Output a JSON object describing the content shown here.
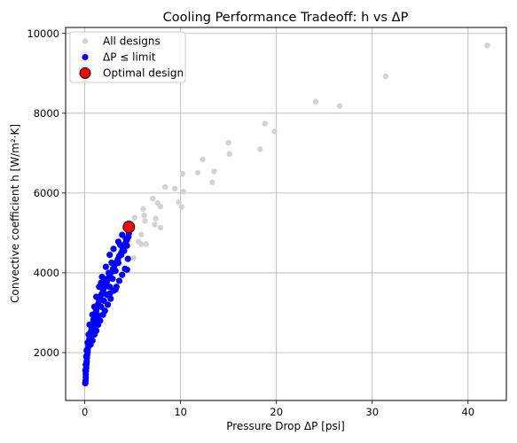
{
  "chart_data": {
    "type": "scatter",
    "title": "Cooling Performance Tradeoff: h vs ΔP",
    "xlabel": "Pressure Drop ΔP [psi]",
    "ylabel": "Convective coefficient h [W/m²·K]",
    "xlim": [
      -2,
      44
    ],
    "ylim": [
      800,
      10150
    ],
    "xticks": [
      0,
      10,
      20,
      30,
      40
    ],
    "yticks": [
      2000,
      4000,
      6000,
      8000,
      10000
    ],
    "grid": true,
    "legend": "top-left",
    "series": [
      {
        "name": "All designs",
        "color": "#d3d3d3",
        "points": [
          [
            5.2,
            5380
          ],
          [
            5.9,
            4960
          ],
          [
            6.1,
            5600
          ],
          [
            6.2,
            5440
          ],
          [
            6.3,
            5300
          ],
          [
            5.6,
            4780
          ],
          [
            5.9,
            4720
          ],
          [
            6.4,
            4720
          ],
          [
            5.1,
            4370
          ],
          [
            7.1,
            5860
          ],
          [
            7.4,
            5360
          ],
          [
            7.6,
            5750
          ],
          [
            7.3,
            5210
          ],
          [
            7.9,
            5130
          ],
          [
            7.9,
            5660
          ],
          [
            8.4,
            6150
          ],
          [
            9.4,
            6110
          ],
          [
            9.8,
            5770
          ],
          [
            10.1,
            5650
          ],
          [
            10.2,
            6480
          ],
          [
            10.3,
            6040
          ],
          [
            11.8,
            6510
          ],
          [
            12.3,
            6840
          ],
          [
            13.3,
            6270
          ],
          [
            13.5,
            6540
          ],
          [
            15.0,
            7260
          ],
          [
            15.1,
            6980
          ],
          [
            18.3,
            7100
          ],
          [
            18.8,
            7740
          ],
          [
            19.8,
            7540
          ],
          [
            24.1,
            8290
          ],
          [
            26.6,
            8180
          ],
          [
            31.4,
            8920
          ],
          [
            42.0,
            9700
          ]
        ]
      },
      {
        "name": "ΔP ≤ limit",
        "color": "#0000ff",
        "points": [
          [
            0.05,
            1230
          ],
          [
            0.08,
            1300
          ],
          [
            0.1,
            1380
          ],
          [
            0.1,
            1460
          ],
          [
            0.12,
            1540
          ],
          [
            0.15,
            1620
          ],
          [
            0.17,
            1700
          ],
          [
            0.2,
            1780
          ],
          [
            0.22,
            1860
          ],
          [
            0.25,
            1940
          ],
          [
            0.3,
            2020
          ],
          [
            0.32,
            2100
          ],
          [
            0.38,
            2180
          ],
          [
            0.42,
            2260
          ],
          [
            0.48,
            2340
          ],
          [
            0.55,
            2420
          ],
          [
            0.6,
            2500
          ],
          [
            0.7,
            2580
          ],
          [
            0.75,
            2660
          ],
          [
            0.85,
            2740
          ],
          [
            0.9,
            2820
          ],
          [
            1.0,
            2900
          ],
          [
            1.1,
            2980
          ],
          [
            1.2,
            3060
          ],
          [
            1.3,
            3140
          ],
          [
            1.4,
            3220
          ],
          [
            1.5,
            3300
          ],
          [
            1.6,
            3380
          ],
          [
            1.75,
            3460
          ],
          [
            1.9,
            3540
          ],
          [
            2.0,
            3620
          ],
          [
            2.15,
            3700
          ],
          [
            2.3,
            3780
          ],
          [
            2.45,
            3860
          ],
          [
            2.6,
            3940
          ],
          [
            2.8,
            4020
          ],
          [
            2.95,
            4100
          ],
          [
            3.1,
            4180
          ],
          [
            3.3,
            4260
          ],
          [
            3.45,
            4340
          ],
          [
            3.6,
            4420
          ],
          [
            3.8,
            4500
          ],
          [
            3.95,
            4580
          ],
          [
            4.1,
            4660
          ],
          [
            4.25,
            4740
          ],
          [
            4.4,
            4820
          ],
          [
            4.55,
            4900
          ],
          [
            4.6,
            4980
          ],
          [
            0.6,
            2200
          ],
          [
            0.8,
            2300
          ],
          [
            1.0,
            2450
          ],
          [
            1.2,
            2550
          ],
          [
            1.4,
            2700
          ],
          [
            1.6,
            2800
          ],
          [
            1.9,
            2950
          ],
          [
            2.1,
            3050
          ],
          [
            2.4,
            3200
          ],
          [
            2.7,
            3350
          ],
          [
            3.0,
            3550
          ],
          [
            3.3,
            3650
          ],
          [
            3.6,
            3800
          ],
          [
            3.9,
            3950
          ],
          [
            4.2,
            4100
          ],
          [
            4.5,
            4350
          ],
          [
            0.9,
            2650
          ],
          [
            1.1,
            2800
          ],
          [
            1.3,
            2950
          ],
          [
            1.7,
            3150
          ],
          [
            2.0,
            3300
          ],
          [
            2.3,
            3450
          ],
          [
            2.6,
            3650
          ],
          [
            2.9,
            3850
          ],
          [
            3.2,
            4050
          ],
          [
            3.5,
            4250
          ],
          [
            3.8,
            4450
          ],
          [
            4.1,
            4550
          ],
          [
            4.4,
            4680
          ],
          [
            3.0,
            4600
          ],
          [
            3.5,
            4780
          ],
          [
            3.9,
            4950
          ],
          [
            2.6,
            4450
          ],
          [
            2.2,
            4150
          ],
          [
            1.8,
            3900
          ],
          [
            1.5,
            3650
          ],
          [
            1.2,
            3400
          ],
          [
            1.0,
            3150
          ],
          [
            0.8,
            2950
          ],
          [
            0.5,
            2700
          ],
          [
            0.4,
            2450
          ],
          [
            0.3,
            2250
          ],
          [
            1.7,
            3750
          ],
          [
            2.0,
            3850
          ],
          [
            2.5,
            4000
          ],
          [
            2.8,
            4250
          ],
          [
            3.7,
            4700
          ],
          [
            4.3,
            4850
          ],
          [
            4.4,
            4080
          ],
          [
            3.2,
            3580
          ],
          [
            2.6,
            3480
          ],
          [
            1.4,
            2850
          ],
          [
            0.7,
            2450
          ],
          [
            0.2,
            2050
          ],
          [
            0.15,
            1900
          ],
          [
            0.1,
            1700
          ],
          [
            0.07,
            1550
          ]
        ]
      },
      {
        "name": "Optimal design",
        "color": "#ff0000",
        "edge": "#000000",
        "points": [
          [
            4.6,
            5150
          ]
        ]
      }
    ]
  }
}
